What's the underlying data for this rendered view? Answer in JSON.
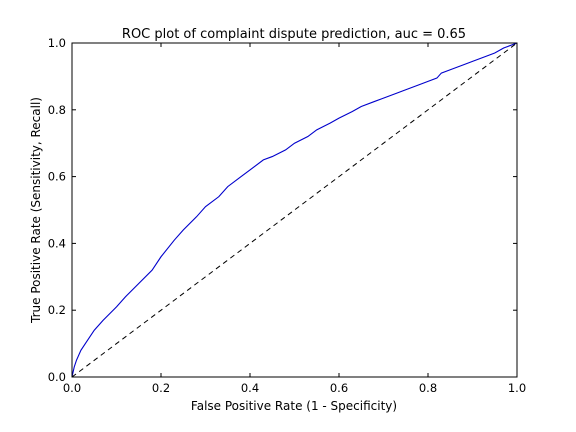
{
  "chart_data": {
    "type": "line",
    "title": "ROC plot of  complaint dispute prediction, auc = 0.65",
    "xlabel": "False Positive Rate (1 - Specificity)",
    "ylabel": "True Positive Rate (Sensitivity, Recall)",
    "xlim": [
      0.0,
      1.0
    ],
    "ylim": [
      0.0,
      1.0
    ],
    "xticks": [
      "0.0",
      "0.2",
      "0.4",
      "0.6",
      "0.8",
      "1.0"
    ],
    "yticks": [
      "0.0",
      "0.2",
      "0.4",
      "0.6",
      "0.8",
      "1.0"
    ],
    "grid": false,
    "legend": "none",
    "series": [
      {
        "style": "solid",
        "color": "#0000cc",
        "x": [
          0.0,
          0.005,
          0.01,
          0.02,
          0.03,
          0.05,
          0.07,
          0.1,
          0.12,
          0.15,
          0.18,
          0.2,
          0.23,
          0.25,
          0.28,
          0.3,
          0.33,
          0.35,
          0.38,
          0.4,
          0.43,
          0.45,
          0.48,
          0.5,
          0.53,
          0.55,
          0.58,
          0.6,
          0.63,
          0.65,
          0.68,
          0.7,
          0.73,
          0.75,
          0.78,
          0.8,
          0.82,
          0.83,
          0.85,
          0.88,
          0.9,
          0.93,
          0.95,
          0.97,
          0.98,
          1.0
        ],
        "y": [
          0.0,
          0.03,
          0.05,
          0.08,
          0.1,
          0.14,
          0.17,
          0.21,
          0.24,
          0.28,
          0.32,
          0.36,
          0.41,
          0.44,
          0.48,
          0.51,
          0.54,
          0.57,
          0.6,
          0.62,
          0.65,
          0.66,
          0.68,
          0.7,
          0.72,
          0.74,
          0.76,
          0.775,
          0.795,
          0.81,
          0.825,
          0.835,
          0.85,
          0.86,
          0.875,
          0.885,
          0.895,
          0.91,
          0.92,
          0.935,
          0.945,
          0.96,
          0.97,
          0.985,
          0.99,
          1.0
        ]
      },
      {
        "style": "dashed",
        "color": "#000000",
        "x": [
          0.0,
          1.0
        ],
        "y": [
          0.0,
          1.0
        ]
      }
    ]
  }
}
